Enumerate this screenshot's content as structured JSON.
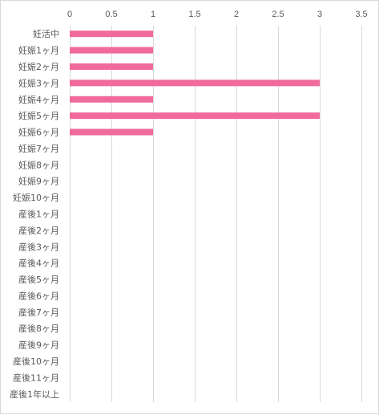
{
  "chart_data": {
    "type": "bar",
    "orientation": "horizontal",
    "title": "",
    "xlabel": "",
    "ylabel": "",
    "xlim": [
      0,
      3.5
    ],
    "x_ticks": [
      "0",
      "0.5",
      "1",
      "1.5",
      "2",
      "2.5",
      "3",
      "3.5"
    ],
    "x_axis_position": "top",
    "grid": true,
    "legend": "none",
    "bar_color": "#f06a9b",
    "categories": [
      "妊活中",
      "妊娠1ヶ月",
      "妊娠2ヶ月",
      "妊娠3ヶ月",
      "妊娠4ヶ月",
      "妊娠5ヶ月",
      "妊娠6ヶ月",
      "妊娠7ヶ月",
      "妊娠8ヶ月",
      "妊娠9ヶ月",
      "妊娠10ヶ月",
      "産後1ヶ月",
      "産後2ヶ月",
      "産後3ヶ月",
      "産後4ヶ月",
      "産後5ヶ月",
      "産後6ヶ月",
      "産後7ヶ月",
      "産後8ヶ月",
      "産後9ヶ月",
      "産後10ヶ月",
      "産後11ヶ月",
      "産後1年以上"
    ],
    "values": [
      1,
      1,
      1,
      3,
      1,
      3,
      1,
      0,
      0,
      0,
      0,
      0,
      0,
      0,
      0,
      0,
      0,
      0,
      0,
      0,
      0,
      0,
      0
    ]
  }
}
